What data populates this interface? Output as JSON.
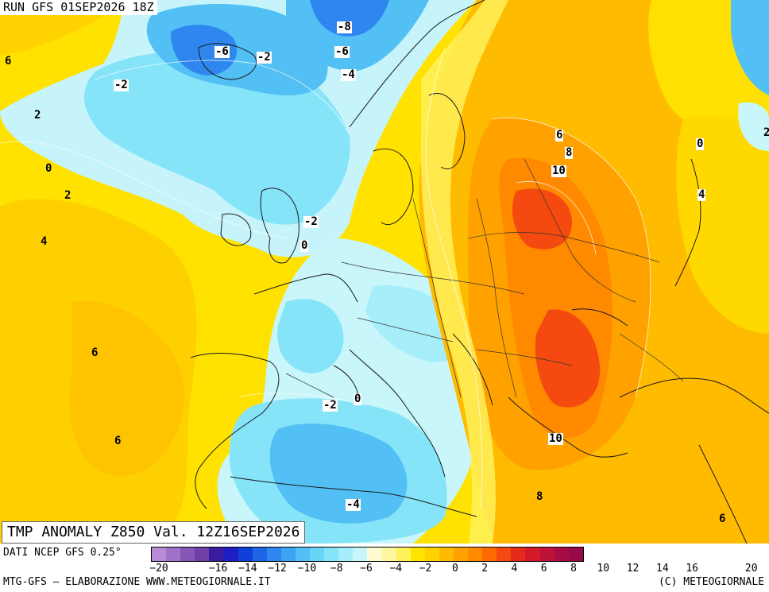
{
  "header": {
    "run": "RUN GFS 01SEP2026 18Z"
  },
  "map": {
    "title": "TMP ANOMALY Z850 Val. 12Z16SEP2026",
    "contour_labels": [
      {
        "text": "-8"
      },
      {
        "text": "-6"
      },
      {
        "text": "-2"
      },
      {
        "text": "-6"
      },
      {
        "text": "-4"
      },
      {
        "text": "6"
      },
      {
        "text": "-2"
      },
      {
        "text": "2"
      },
      {
        "text": "0"
      },
      {
        "text": "2"
      },
      {
        "text": "4"
      },
      {
        "text": "-2"
      },
      {
        "text": "0"
      },
      {
        "text": "6"
      },
      {
        "text": "8"
      },
      {
        "text": "10"
      },
      {
        "text": "0"
      },
      {
        "text": "4"
      },
      {
        "text": "2"
      },
      {
        "text": "6"
      },
      {
        "text": "6"
      },
      {
        "text": "0"
      },
      {
        "text": "-2"
      },
      {
        "text": "10"
      },
      {
        "text": "8"
      },
      {
        "text": "-4"
      },
      {
        "text": "6"
      }
    ]
  },
  "legend": {
    "data_source": "DATI NCEP GFS 0.25°",
    "colors": [
      "#b98ad6",
      "#a071c8",
      "#8556b6",
      "#6e3fa6",
      "#3b1aa0",
      "#1f1fc4",
      "#1040d8",
      "#1e66e6",
      "#2f86ee",
      "#3da3f2",
      "#52bff5",
      "#68d4f7",
      "#86e4f9",
      "#a6eefa",
      "#c8f6fb",
      "#fffbd0",
      "#fff7a0",
      "#fff15a",
      "#ffe400",
      "#ffd200",
      "#ffbb00",
      "#ffa200",
      "#ff8a00",
      "#ff6a00",
      "#f44a10",
      "#e42a1a",
      "#d21a2a",
      "#bd1238",
      "#a80c44",
      "#960a4a"
    ],
    "ticks": [
      "-20",
      "-18",
      "-16",
      "-14",
      "-12",
      "-10",
      "-8",
      "-6",
      "-4",
      "-2",
      "0",
      "2",
      "4",
      "6",
      "8",
      "10",
      "12",
      "14",
      "16",
      "18",
      "20"
    ],
    "tick_display": [
      "-20",
      "-16",
      "-14",
      "-12",
      "-10",
      "-8",
      "-6",
      "-4",
      "-2",
      "0",
      "2",
      "4",
      "6",
      "8",
      "10",
      "12",
      "14",
      "16",
      "20"
    ]
  },
  "footer": {
    "credit": "MTG-GFS — ELABORAZIONE WWW.METEOGIORNALE.IT",
    "copyright": "(C) METEOGIORNALE"
  }
}
